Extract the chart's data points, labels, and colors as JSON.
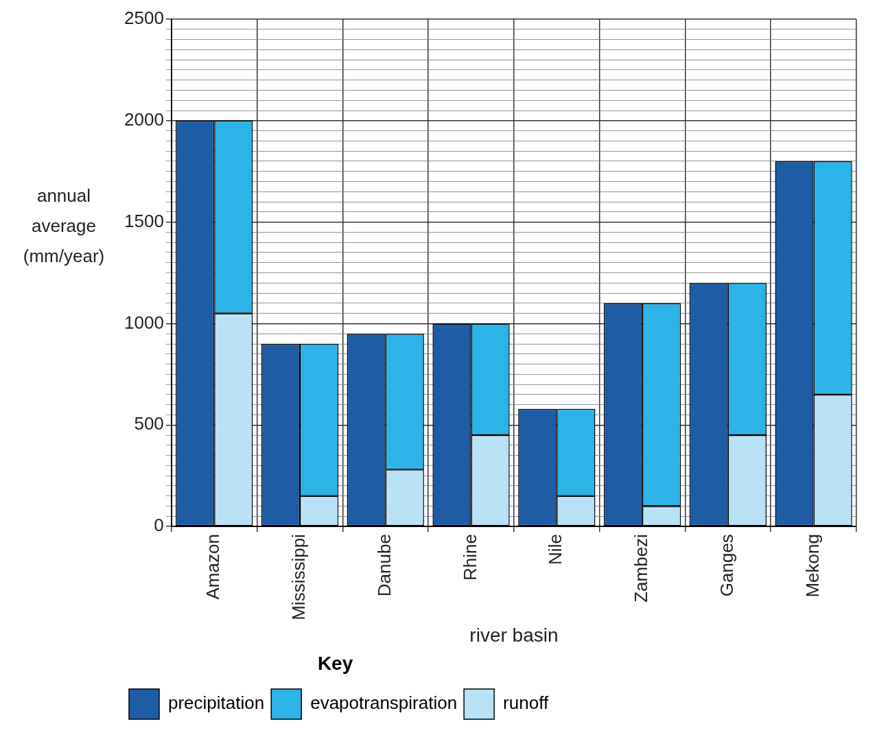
{
  "chart_data": {
    "type": "bar",
    "xlabel": "river basin",
    "ylabel": "annual average (mm/year)",
    "legend_title": "Key",
    "categories": [
      "Amazon",
      "Mississippi",
      "Danube",
      "Rhine",
      "Nile",
      "Zambezi",
      "Ganges",
      "Mekong"
    ],
    "series": [
      {
        "name": "precipitation",
        "color": "#1f5ca6",
        "values": [
          2000,
          900,
          950,
          1000,
          580,
          1100,
          1200,
          1800
        ]
      },
      {
        "name": "evapotranspiration",
        "color": "#2cb3e8",
        "values": [
          950,
          750,
          670,
          550,
          430,
          1000,
          750,
          1150
        ],
        "base": [
          1050,
          150,
          280,
          450,
          150,
          100,
          450,
          650
        ]
      },
      {
        "name": "runoff",
        "color": "#b9e2f6",
        "values": [
          1050,
          150,
          280,
          450,
          150,
          100,
          450,
          650
        ],
        "base": [
          0,
          0,
          0,
          0,
          0,
          0,
          0,
          0
        ]
      }
    ],
    "ylim": [
      0,
      2500
    ],
    "yticks": [
      0,
      {
        "value": 50,
        "label": null
      },
      {
        "value": 100,
        "label": null
      },
      {
        "value": 150,
        "label": null
      },
      {
        "value": 200,
        "label": null
      },
      {
        "value": 250,
        "label": null
      },
      {
        "value": 300,
        "label": null
      },
      {
        "value": 350,
        "label": null
      },
      {
        "value": 400,
        "label": null
      },
      {
        "value": 450,
        "label": null
      },
      500,
      {
        "value": 550,
        "label": null
      },
      {
        "value": 600,
        "label": null
      },
      {
        "value": 650,
        "label": null
      },
      {
        "value": 700,
        "label": null
      },
      {
        "value": 750,
        "label": null
      },
      {
        "value": 800,
        "label": null
      },
      {
        "value": 850,
        "label": null
      },
      {
        "value": 900,
        "label": null
      },
      {
        "value": 950,
        "label": null
      },
      1000,
      {
        "value": 1050,
        "label": null
      },
      {
        "value": 1100,
        "label": null
      },
      {
        "value": 1150,
        "label": null
      },
      {
        "value": 1200,
        "label": null
      },
      {
        "value": 1250,
        "label": null
      },
      {
        "value": 1300,
        "label": null
      },
      {
        "value": 1350,
        "label": null
      },
      {
        "value": 1400,
        "label": null
      },
      {
        "value": 1450,
        "label": null
      },
      1500,
      {
        "value": 1550,
        "label": null
      },
      {
        "value": 1600,
        "label": null
      },
      {
        "value": 1650,
        "label": null
      },
      {
        "value": 1700,
        "label": null
      },
      {
        "value": 1750,
        "label": null
      },
      {
        "value": 1800,
        "label": null
      },
      {
        "value": 1850,
        "label": null
      },
      {
        "value": 1900,
        "label": null
      },
      {
        "value": 1950,
        "label": null
      },
      2000,
      {
        "value": 2050,
        "label": null
      },
      {
        "value": 2100,
        "label": null
      },
      {
        "value": 2150,
        "label": null
      },
      {
        "value": 2200,
        "label": null
      },
      {
        "value": 2250,
        "label": null
      },
      {
        "value": 2300,
        "label": null
      },
      {
        "value": 2350,
        "label": null
      },
      {
        "value": 2400,
        "label": null
      },
      {
        "value": 2450,
        "label": null
      },
      2500
    ],
    "grid": true,
    "legend": "bottom left"
  }
}
